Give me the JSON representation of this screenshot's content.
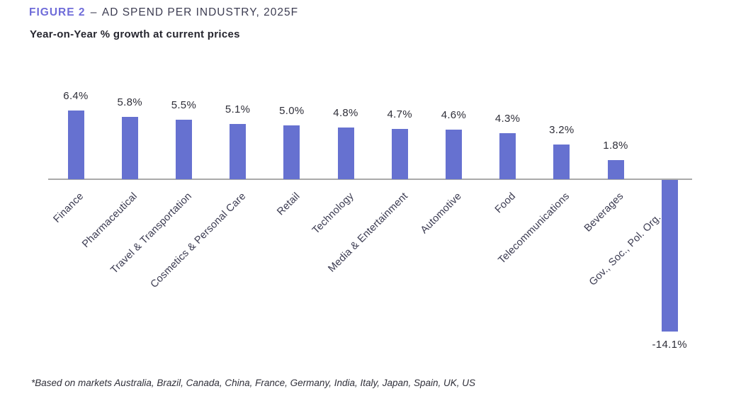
{
  "header": {
    "figure_label": "FIGURE 2",
    "separator": "–",
    "title": "AD SPEND PER INDUSTRY, 2025F",
    "subtitle": "Year-on-Year % growth at current prices"
  },
  "chart_data": {
    "type": "bar",
    "title": "AD SPEND PER INDUSTRY, 2025F",
    "subtitle": "Year-on-Year % growth at current prices",
    "categories": [
      "Finance",
      "Pharmaceutical",
      "Travel & Transportation",
      "Cosmetics & Personal Care",
      "Retail",
      "Technology",
      "Media & Entertainment",
      "Automotive",
      "Food",
      "Telecommunications",
      "Beverages",
      "Gov., Soc., Pol. Org."
    ],
    "values": [
      6.4,
      5.8,
      5.5,
      5.1,
      5.0,
      4.8,
      4.7,
      4.6,
      4.3,
      3.2,
      1.8,
      -14.1
    ],
    "value_labels": [
      "6.4%",
      "5.8%",
      "5.5%",
      "5.1%",
      "5.0%",
      "4.8%",
      "4.7%",
      "4.6%",
      "4.3%",
      "3.2%",
      "1.8%",
      "-14.1%"
    ],
    "unit": "%",
    "xlabel": "",
    "ylabel": "Year-on-Year % growth at current prices",
    "ylim": [
      -16,
      8
    ],
    "grid": false,
    "legend": false,
    "bar_color": "#6671d0",
    "axis_color": "#a9a9a9"
  },
  "footnote": "*Based on markets Australia, Brazil, Canada, China, France, Germany, India, Italy, Japan, Spain, UK, US",
  "colors": {
    "accent": "#6f6cd9",
    "title_text": "#3d3d52",
    "subtitle_text": "#26262f",
    "label_text": "#2e2e38",
    "category_text": "#3a3a50"
  }
}
